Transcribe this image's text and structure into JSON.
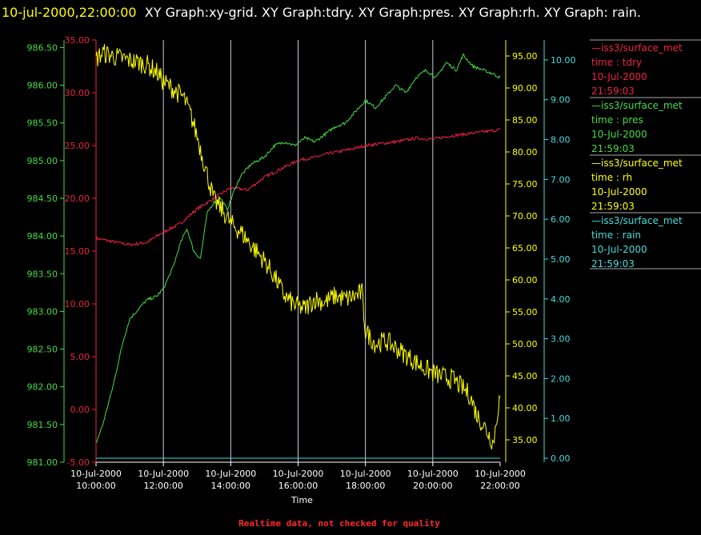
{
  "title": {
    "timestamp": "10-jul-2000,22:00:00",
    "text": "XY Graph:xy-grid.  XY Graph:tdry.  XY Graph:pres.  XY Graph:rh.  XY Graph: rain."
  },
  "footer": {
    "text": "Realtime data, not checked for quality",
    "color": "#ff2a2a"
  },
  "chart_data": {
    "type": "line",
    "xlabel": "Time",
    "xlim": [
      "10-Jul-2000 10:00:00",
      "10-Jul-2000 22:00:00"
    ],
    "x_ticks": [
      {
        "date": "10-Jul-2000",
        "time": "10:00:00"
      },
      {
        "date": "10-Jul-2000",
        "time": "12:00:00"
      },
      {
        "date": "10-Jul-2000",
        "time": "14:00:00"
      },
      {
        "date": "10-Jul-2000",
        "time": "16:00:00"
      },
      {
        "date": "10-Jul-2000",
        "time": "18:00:00"
      },
      {
        "date": "10-Jul-2000",
        "time": "20:00:00"
      },
      {
        "date": "10-Jul-2000",
        "time": "22:00:00"
      }
    ],
    "grid": "vertical",
    "legend_position": "right",
    "axes": {
      "pres": {
        "color": "#44dd44",
        "range": [
          981.0,
          986.6
        ],
        "ticks": [
          "981.00",
          "981.50",
          "982.00",
          "982.50",
          "983.00",
          "983.50",
          "984.00",
          "984.50",
          "985.00",
          "985.50",
          "986.00",
          "986.50"
        ]
      },
      "tdry": {
        "color": "#ee2244",
        "range": [
          -5.0,
          35.0
        ],
        "ticks": [
          "-5.00",
          "0.00",
          "5.00",
          "10.00",
          "15.00",
          "20.00",
          "25.00",
          "30.00",
          "35.00"
        ]
      },
      "rh": {
        "color": "#ffff00",
        "range": [
          31.5,
          97.5
        ],
        "ticks": [
          "35.00",
          "40.00",
          "45.00",
          "50.00",
          "55.00",
          "60.00",
          "65.00",
          "70.00",
          "75.00",
          "80.00",
          "85.00",
          "90.00",
          "95.00"
        ]
      },
      "rain": {
        "color": "#44dddd",
        "range": [
          -0.1,
          10.5
        ],
        "ticks": [
          "0.00",
          "1.00",
          "2.00",
          "3.00",
          "4.00",
          "5.00",
          "6.00",
          "7.00",
          "8.00",
          "9.00",
          "10.00"
        ]
      }
    },
    "series": [
      {
        "key": "tdry",
        "axis": "tdry",
        "color": "#ee2244",
        "noise": 0.15,
        "x": [
          10.0,
          10.5,
          11.0,
          11.5,
          12.0,
          12.5,
          13.0,
          13.5,
          14.0,
          14.5,
          15.0,
          15.5,
          16.0,
          16.5,
          17.0,
          17.5,
          18.0,
          18.5,
          19.0,
          19.5,
          20.0,
          20.5,
          21.0,
          21.5,
          22.0
        ],
        "y": [
          16.2,
          15.9,
          15.6,
          15.8,
          16.8,
          17.6,
          19.0,
          20.0,
          21.0,
          20.8,
          22.0,
          22.8,
          23.6,
          23.9,
          24.3,
          24.6,
          25.0,
          25.2,
          25.4,
          25.7,
          25.6,
          25.9,
          26.1,
          26.3,
          26.5
        ]
      },
      {
        "key": "pres",
        "axis": "pres",
        "color": "#44dd44",
        "noise": 0.02,
        "x": [
          10.0,
          10.2,
          10.5,
          10.8,
          11.0,
          11.3,
          11.5,
          11.8,
          12.0,
          12.3,
          12.5,
          12.7,
          12.9,
          13.1,
          13.3,
          13.5,
          13.7,
          13.9,
          14.1,
          14.3,
          14.6,
          14.8,
          15.0,
          15.3,
          15.6,
          15.9,
          16.2,
          16.5,
          16.8,
          17.1,
          17.4,
          17.7,
          18.0,
          18.3,
          18.6,
          18.9,
          19.2,
          19.5,
          19.8,
          20.1,
          20.4,
          20.7,
          20.9,
          21.2,
          21.5,
          21.8,
          22.0
        ],
        "y": [
          981.25,
          981.5,
          982.0,
          982.6,
          982.9,
          983.05,
          983.15,
          983.2,
          983.3,
          983.6,
          983.9,
          984.1,
          983.8,
          983.7,
          984.3,
          984.45,
          984.5,
          984.35,
          984.6,
          984.8,
          984.95,
          985.0,
          985.05,
          985.2,
          985.25,
          985.2,
          985.3,
          985.25,
          985.35,
          985.45,
          985.5,
          985.65,
          985.8,
          985.7,
          985.85,
          986.0,
          985.9,
          986.1,
          986.2,
          986.1,
          986.3,
          986.2,
          986.4,
          986.25,
          986.2,
          986.15,
          986.1
        ]
      },
      {
        "key": "rh",
        "axis": "rh",
        "color": "#ffff00",
        "noise": 1.6,
        "x": [
          10.0,
          10.2,
          10.5,
          11.0,
          11.5,
          11.8,
          12.0,
          12.3,
          12.6,
          12.8,
          13.0,
          13.2,
          13.5,
          13.8,
          14.0,
          14.3,
          14.6,
          15.0,
          15.3,
          15.6,
          15.9,
          16.2,
          16.5,
          16.8,
          17.1,
          17.4,
          17.7,
          17.9,
          18.0,
          18.3,
          18.6,
          19.0,
          19.4,
          19.8,
          20.2,
          20.6,
          20.9,
          21.1,
          21.3,
          21.6,
          21.8,
          21.95,
          22.0
        ],
        "y": [
          94.5,
          95.5,
          95.0,
          94.3,
          93.7,
          92.5,
          91.0,
          89.8,
          88.5,
          86.0,
          82.5,
          78.5,
          72.5,
          70.5,
          68.8,
          67.5,
          65.5,
          63.0,
          60.5,
          57.5,
          56.0,
          55.5,
          57.0,
          56.5,
          57.5,
          57.0,
          57.5,
          58.0,
          52.0,
          50.0,
          50.5,
          49.0,
          47.5,
          46.0,
          45.0,
          44.5,
          43.0,
          42.0,
          39.0,
          36.5,
          34.5,
          40.5,
          41.5
        ]
      },
      {
        "key": "rain",
        "axis": "rain",
        "color": "#44dddd",
        "noise": 0,
        "x": [
          10.0,
          22.0
        ],
        "y": [
          0.0,
          0.0
        ]
      }
    ]
  },
  "legend": [
    {
      "key": "tdry",
      "color": "#ee2244",
      "source": "—iss3/surface_met",
      "field": "time : tdry",
      "date": "10-Jul-2000",
      "time": "21:59:03"
    },
    {
      "key": "pres",
      "color": "#44dd44",
      "source": "—iss3/surface_met",
      "field": "time : pres",
      "date": "10-Jul-2000",
      "time": "21:59:03"
    },
    {
      "key": "rh",
      "color": "#ffff00",
      "source": "—iss3/surface_met",
      "field": "time : rh",
      "date": "10-Jul-2000",
      "time": "21:59:03"
    },
    {
      "key": "rain",
      "color": "#44dddd",
      "source": "—iss3/surface_met",
      "field": "time : rain",
      "date": "10-Jul-2000",
      "time": "21:59:03"
    }
  ]
}
